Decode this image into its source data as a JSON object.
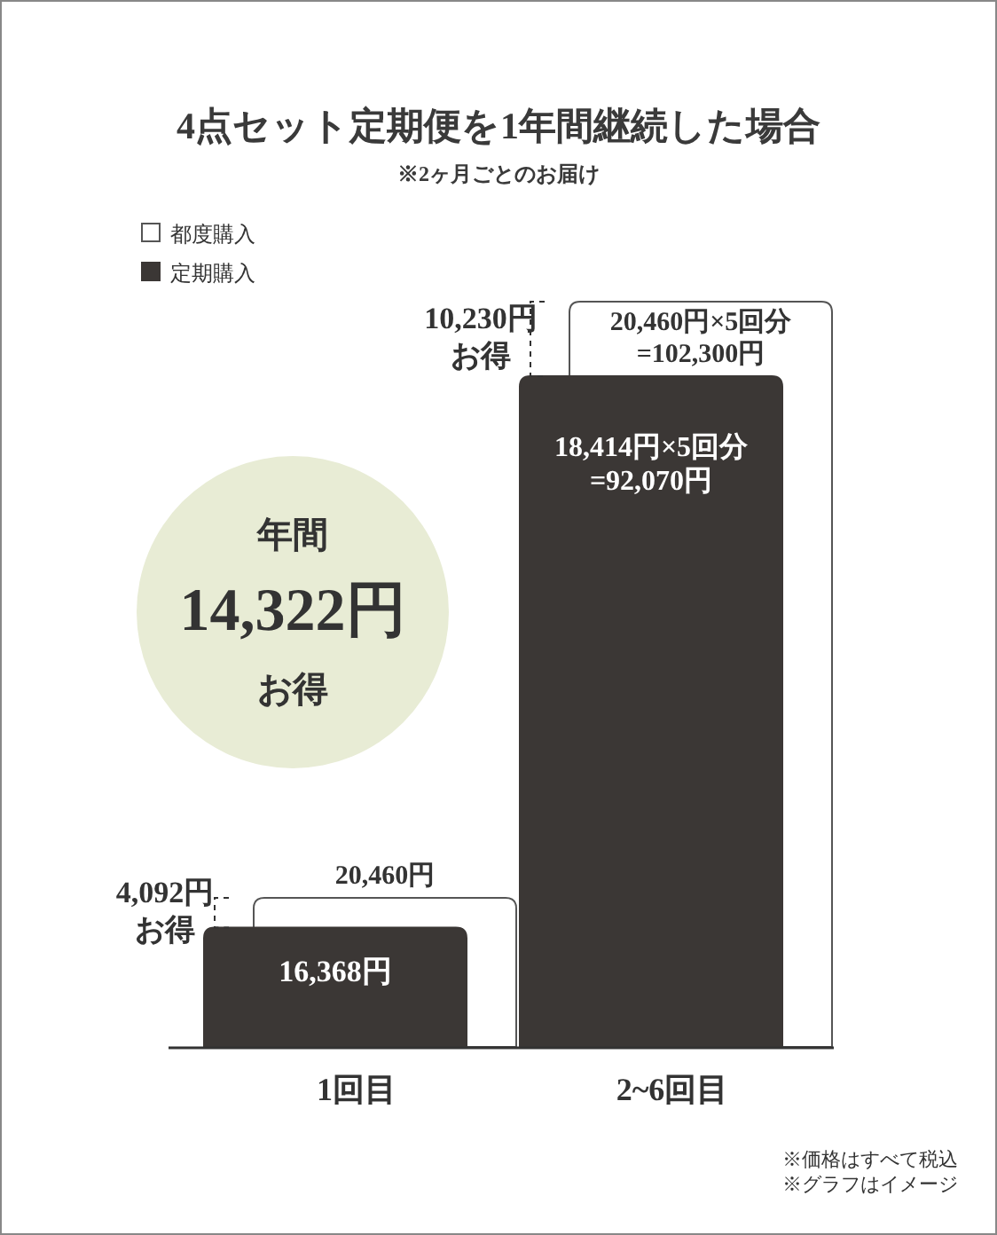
{
  "chart_data": {
    "type": "bar",
    "title": "4点セット定期便を1年間継続した場合",
    "subtitle": "※2ヶ月ごとのお届け",
    "legend": "top left",
    "categories": [
      "1回目",
      "2~6回目"
    ],
    "series": [
      {
        "name": "都度購入",
        "color": "#ffffff",
        "values": [
          20460,
          102300
        ],
        "value_labels": [
          "20,460円",
          "20,460円×5回分\n=102,300円"
        ]
      },
      {
        "name": "定期購入",
        "color": "#3b3735",
        "values": [
          16368,
          92070
        ],
        "value_labels": [
          "16,368円",
          "18,414円×5回分\n=92,070円"
        ]
      }
    ],
    "annotations": [
      "4,092円",
      "お得",
      "10,230円",
      "お得",
      "年間",
      "14,322円",
      "お得",
      "※価格はすべて税込",
      "※グラフはイメージ"
    ]
  }
}
